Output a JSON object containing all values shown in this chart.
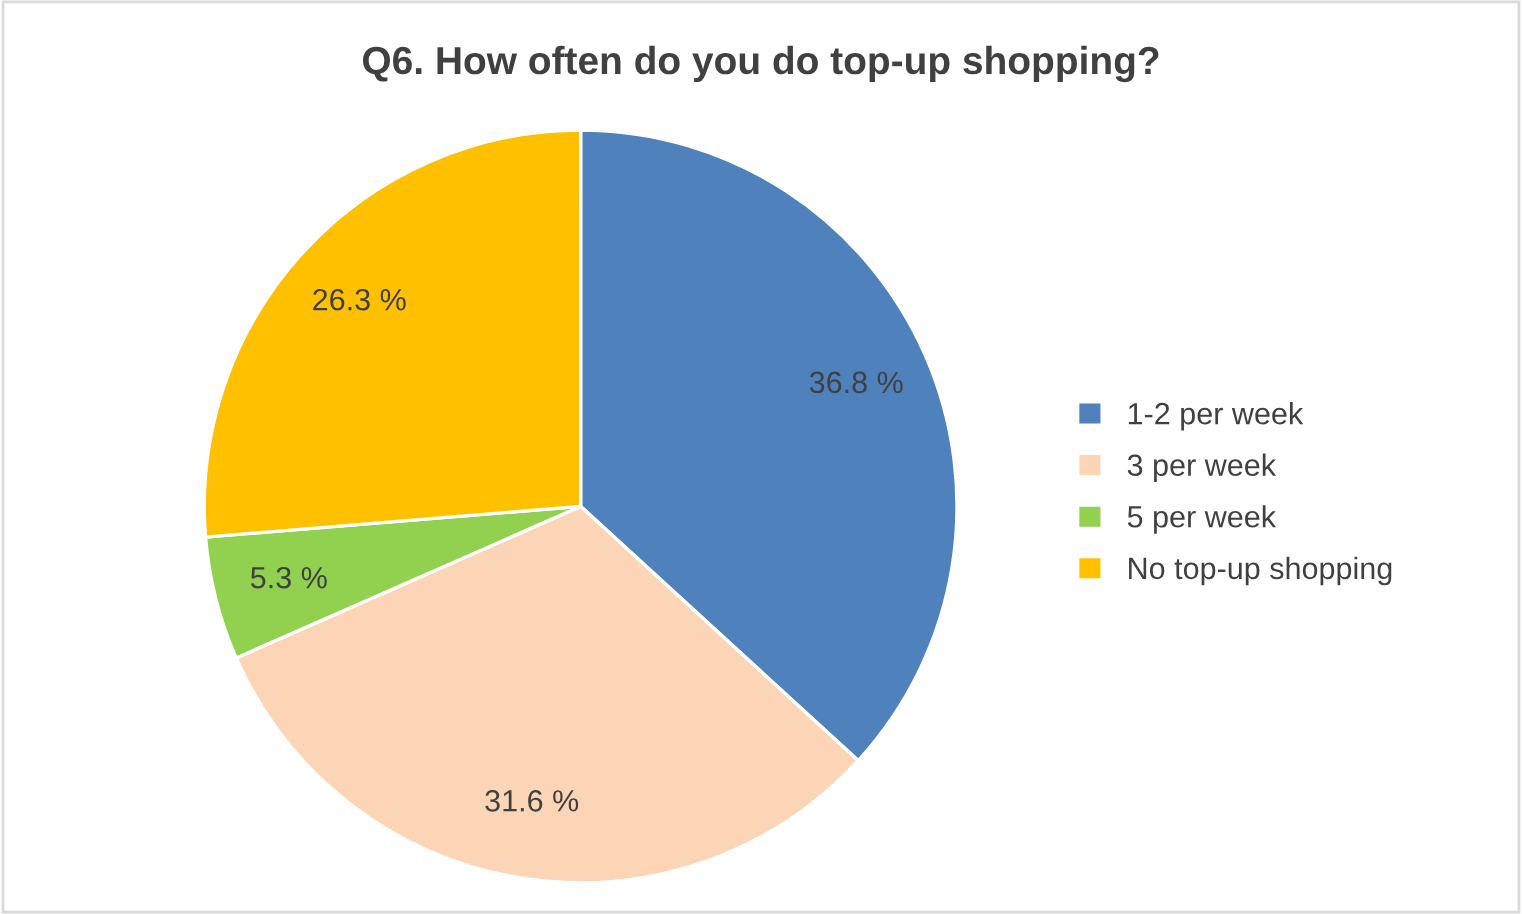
{
  "chart_data": {
    "type": "pie",
    "title": "Q6. How often do you do top-up shopping?",
    "categories": [
      "1-2 per week",
      "3 per week",
      "5 per week",
      "No top-up shopping"
    ],
    "values": [
      36.8,
      31.6,
      5.3,
      26.3
    ],
    "colors": [
      "#4f81bd",
      "#fbd5b5",
      "#92d050",
      "#ffc000"
    ],
    "value_labels": [
      "36.8 %",
      "31.6 %",
      "5.3 %",
      "26.3 %"
    ],
    "legend": "right"
  }
}
